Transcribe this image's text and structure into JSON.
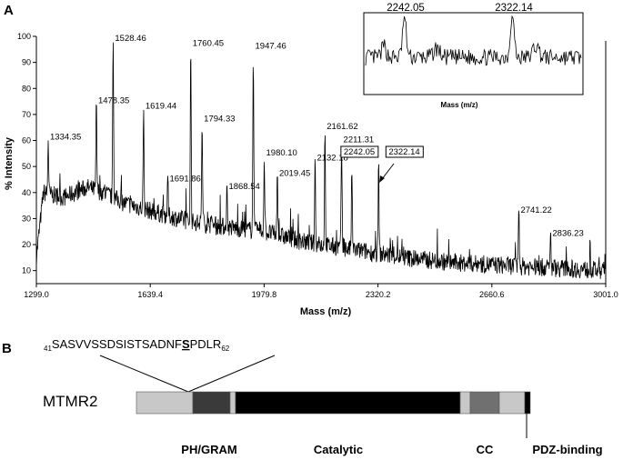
{
  "panels": {
    "a": "A",
    "b": "B"
  },
  "chart_data": {
    "type": "line",
    "ylabel": "% Intensity",
    "xlabel": "Mass (m/z)",
    "xlim": [
      1299.0,
      3001.0
    ],
    "ylim": [
      5,
      100
    ],
    "x_ticks": [
      "1299.0",
      "1639.4",
      "1979.8",
      "2320.2",
      "2660.6",
      "3001.0"
    ],
    "y_ticks": [
      "10",
      "20",
      "30",
      "40",
      "50",
      "60",
      "70",
      "80",
      "90",
      "100"
    ],
    "grid": false,
    "baseline": [
      {
        "x": 1299,
        "y": 15
      },
      {
        "x": 1320,
        "y": 40
      },
      {
        "x": 1380,
        "y": 38
      },
      {
        "x": 1450,
        "y": 42
      },
      {
        "x": 1500,
        "y": 40
      },
      {
        "x": 1560,
        "y": 36
      },
      {
        "x": 1640,
        "y": 33
      },
      {
        "x": 1750,
        "y": 29
      },
      {
        "x": 1850,
        "y": 27
      },
      {
        "x": 1980,
        "y": 25
      },
      {
        "x": 2100,
        "y": 21
      },
      {
        "x": 2250,
        "y": 18
      },
      {
        "x": 2400,
        "y": 15
      },
      {
        "x": 2550,
        "y": 13
      },
      {
        "x": 2700,
        "y": 12
      },
      {
        "x": 2850,
        "y": 11
      },
      {
        "x": 3001,
        "y": 10
      }
    ],
    "peaks": [
      {
        "mass": "1334.35",
        "x": 1334.35,
        "y": 61
      },
      {
        "mass": "1478.35",
        "x": 1478.35,
        "y": 75
      },
      {
        "mass": "1528.46",
        "x": 1528.46,
        "y": 99
      },
      {
        "mass": "1619.44",
        "x": 1619.44,
        "y": 73
      },
      {
        "mass": "1691.86",
        "x": 1691.86,
        "y": 45
      },
      {
        "mass": "1760.45",
        "x": 1760.45,
        "y": 97
      },
      {
        "mass": "1794.33",
        "x": 1794.33,
        "y": 68
      },
      {
        "mass": "1868.54",
        "x": 1868.54,
        "y": 42
      },
      {
        "mass": "1947.46",
        "x": 1947.46,
        "y": 96
      },
      {
        "mass": "1980.10",
        "x": 1980.1,
        "y": 55
      },
      {
        "mass": "2019.45",
        "x": 2019.45,
        "y": 47
      },
      {
        "mass": "2132.18",
        "x": 2132.18,
        "y": 53
      },
      {
        "mass": "2161.62",
        "x": 2161.62,
        "y": 65
      },
      {
        "mass": "2211.31",
        "x": 2211.31,
        "y": 60
      },
      {
        "mass": "2242.05",
        "x": 2242.05,
        "y": 50
      },
      {
        "mass": "2322.14",
        "x": 2322.14,
        "y": 51
      },
      {
        "mass": "2741.22",
        "x": 2741.22,
        "y": 33
      },
      {
        "mass": "2836.23",
        "x": 2836.23,
        "y": 24
      }
    ],
    "boxed_peaks": [
      "2242.05",
      "2322.14"
    ],
    "inset": {
      "xlabel": "Mass (m/z)",
      "labels": [
        "2242.05",
        "2322.14"
      ]
    }
  },
  "diagram": {
    "protein": "MTMR2",
    "sequence": {
      "start": "41",
      "before": "SASVVSSDSISTSADNF",
      "highlight": "S",
      "after": "PDLR",
      "end": "62"
    },
    "domains": {
      "ph_gram": "PH/GRAM",
      "catalytic": "Catalytic",
      "cc": "CC",
      "pdz": "PDZ-binding"
    }
  }
}
